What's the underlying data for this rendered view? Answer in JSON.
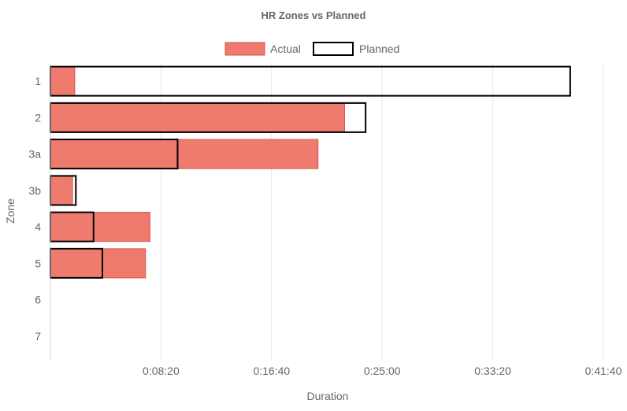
{
  "chart_data": {
    "type": "bar",
    "orientation": "horizontal",
    "title": "HR Zones vs Planned",
    "xlabel": "Duration",
    "ylabel": "Zone",
    "categories": [
      "1",
      "2",
      "3a",
      "3b",
      "4",
      "5",
      "6",
      "7"
    ],
    "x_unit": "seconds",
    "xlim": [
      0,
      2500
    ],
    "x_ticks": [
      500,
      1000,
      1500,
      2000,
      2500
    ],
    "x_tick_labels": [
      "0:08:20",
      "0:16:40",
      "0:25:00",
      "0:33:20",
      "0:41:40"
    ],
    "grid": true,
    "legend_position": "top",
    "series": [
      {
        "name": "Actual",
        "values": [
          110,
          1330,
          1210,
          100,
          450,
          430,
          0,
          0
        ],
        "color": "#ee7b6e",
        "border_color": "#d9534f"
      },
      {
        "name": "Planned",
        "values": [
          2350,
          1425,
          575,
          115,
          195,
          235,
          0,
          0
        ],
        "color": "none",
        "border_color": "#000000"
      }
    ]
  }
}
